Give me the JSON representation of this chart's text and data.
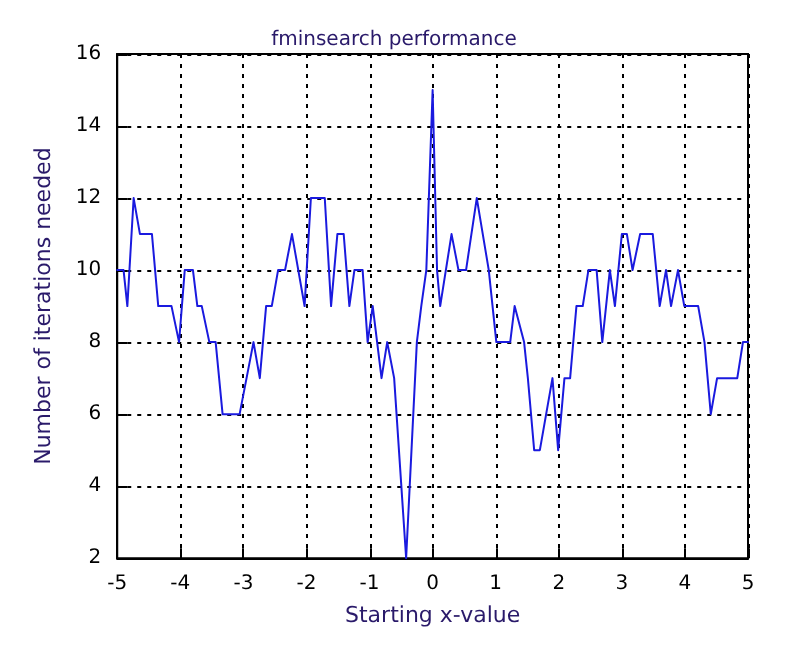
{
  "chart_data": {
    "type": "line",
    "title": "fminsearch performance",
    "xlabel": "Starting x-value",
    "ylabel": "Number of iterations needed",
    "x": [
      -5,
      -4.9,
      -4.84,
      -4.74,
      -4.64,
      -4.45,
      -4.35,
      -4.14,
      -4.02,
      -3.93,
      -3.8,
      -3.73,
      -3.66,
      -3.54,
      -3.44,
      -3.33,
      -3.06,
      -2.84,
      -2.74,
      -2.64,
      -2.55,
      -2.45,
      -2.34,
      -2.23,
      -2.03,
      -1.93,
      -1.71,
      -1.61,
      -1.51,
      -1.41,
      -1.32,
      -1.24,
      -1.11,
      -1.03,
      -0.95,
      -0.81,
      -0.72,
      -0.61,
      -0.42,
      -0.25,
      -0.18,
      -0.1,
      0,
      0.07,
      0.12,
      0.3,
      0.41,
      0.53,
      0.7,
      0.89,
      1.01,
      1.23,
      1.3,
      1.45,
      1.51,
      1.61,
      1.7,
      1.9,
      1.99,
      2.09,
      2.18,
      2.28,
      2.38,
      2.47,
      2.6,
      2.69,
      2.81,
      2.89,
      3,
      3.08,
      3.17,
      3.29,
      3.49,
      3.6,
      3.7,
      3.78,
      3.89,
      3.99,
      4.21,
      4.31,
      4.41,
      4.51,
      4.83,
      4.92,
      5
    ],
    "series": [
      {
        "color": "#1a1adf",
        "values": [
          10,
          10,
          9,
          12,
          11,
          11,
          9,
          9,
          8,
          10,
          10,
          9,
          9,
          8,
          8,
          6,
          6,
          8,
          7,
          9,
          9,
          10,
          10,
          11,
          9,
          12,
          12,
          9,
          11,
          11,
          9,
          10,
          10,
          8,
          9,
          7,
          8,
          7,
          2,
          8,
          9,
          10,
          15,
          10,
          9,
          11,
          10,
          10,
          12,
          10,
          8,
          8,
          9,
          8,
          7,
          5,
          5,
          7,
          5,
          7,
          7,
          9,
          9,
          10,
          10,
          8,
          10,
          9,
          11,
          11,
          10,
          11,
          11,
          9,
          10,
          9,
          10,
          9,
          9,
          8,
          6,
          7,
          7,
          8,
          8
        ]
      }
    ],
    "xlim": [
      -5,
      5
    ],
    "xticks": [
      -5,
      -4,
      -3,
      -2,
      -1,
      0,
      1,
      2,
      3,
      4,
      5
    ],
    "ylim": [
      2,
      16
    ],
    "yticks": [
      2,
      4,
      6,
      8,
      10,
      12,
      14,
      16
    ],
    "grid": true,
    "line_style": "solid"
  }
}
